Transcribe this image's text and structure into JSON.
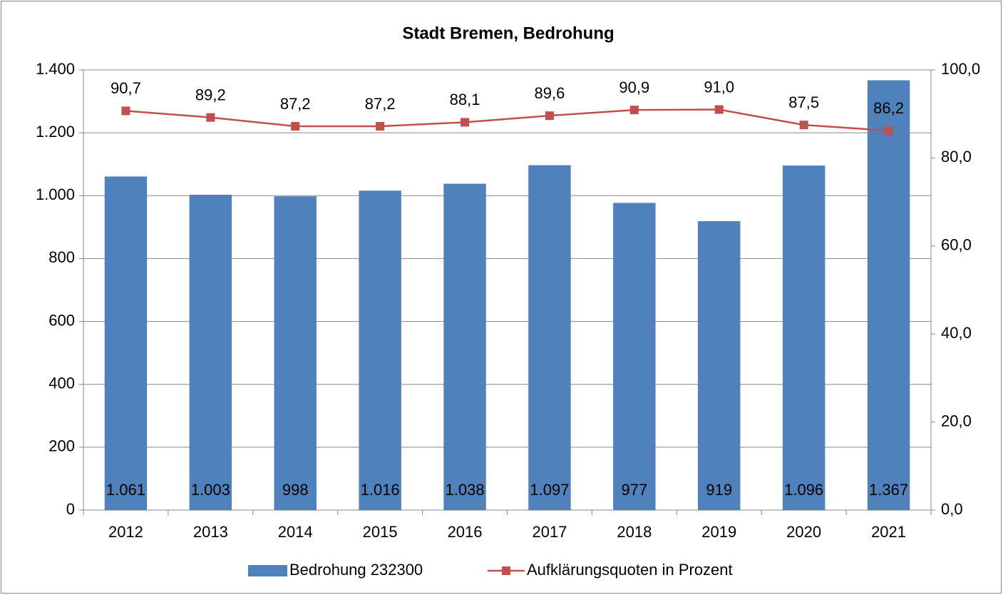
{
  "chart_data": {
    "type": "bar-line",
    "title": "Stadt Bremen,  Bedrohung",
    "categories": [
      "2012",
      "2013",
      "2014",
      "2015",
      "2016",
      "2017",
      "2018",
      "2019",
      "2020",
      "2021"
    ],
    "series": [
      {
        "name": "Bedrohung 232300",
        "type": "bar",
        "color": "#4f81bd",
        "values": [
          1061,
          1003,
          998,
          1016,
          1038,
          1097,
          977,
          919,
          1096,
          1367
        ],
        "value_labels": [
          "1.061",
          "1.003",
          "998",
          "1.016",
          "1.038",
          "1.097",
          "977",
          "919",
          "1.096",
          "1.367"
        ]
      },
      {
        "name": "Aufklärungsquoten in Prozent",
        "type": "line",
        "axis": "y2",
        "color": "#c0504d",
        "values": [
          90.7,
          89.2,
          87.2,
          87.2,
          88.1,
          89.6,
          90.9,
          91.0,
          87.5,
          86.2
        ],
        "value_labels": [
          "90,7",
          "89,2",
          "87,2",
          "87,2",
          "88,1",
          "89,6",
          "90,9",
          "91,0",
          "87,5",
          "86,2"
        ]
      }
    ],
    "ylim": [
      0,
      1400
    ],
    "yticks": [
      0,
      200,
      400,
      600,
      800,
      {
        "value": 1000,
        "label": "1.000"
      },
      {
        "value": 1200,
        "label": "1.200"
      },
      {
        "value": 1400,
        "label": "1.400"
      }
    ],
    "y2lim": [
      0,
      100
    ],
    "y2ticks": [
      {
        "value": 0,
        "label": "0,0"
      },
      {
        "value": 20,
        "label": "20,0"
      },
      {
        "value": 40,
        "label": "40,0"
      },
      {
        "value": 60,
        "label": "60,0"
      },
      {
        "value": 80,
        "label": "80,0"
      },
      {
        "value": 100,
        "label": "100,0"
      }
    ],
    "grid": true,
    "legend": "bottom"
  }
}
